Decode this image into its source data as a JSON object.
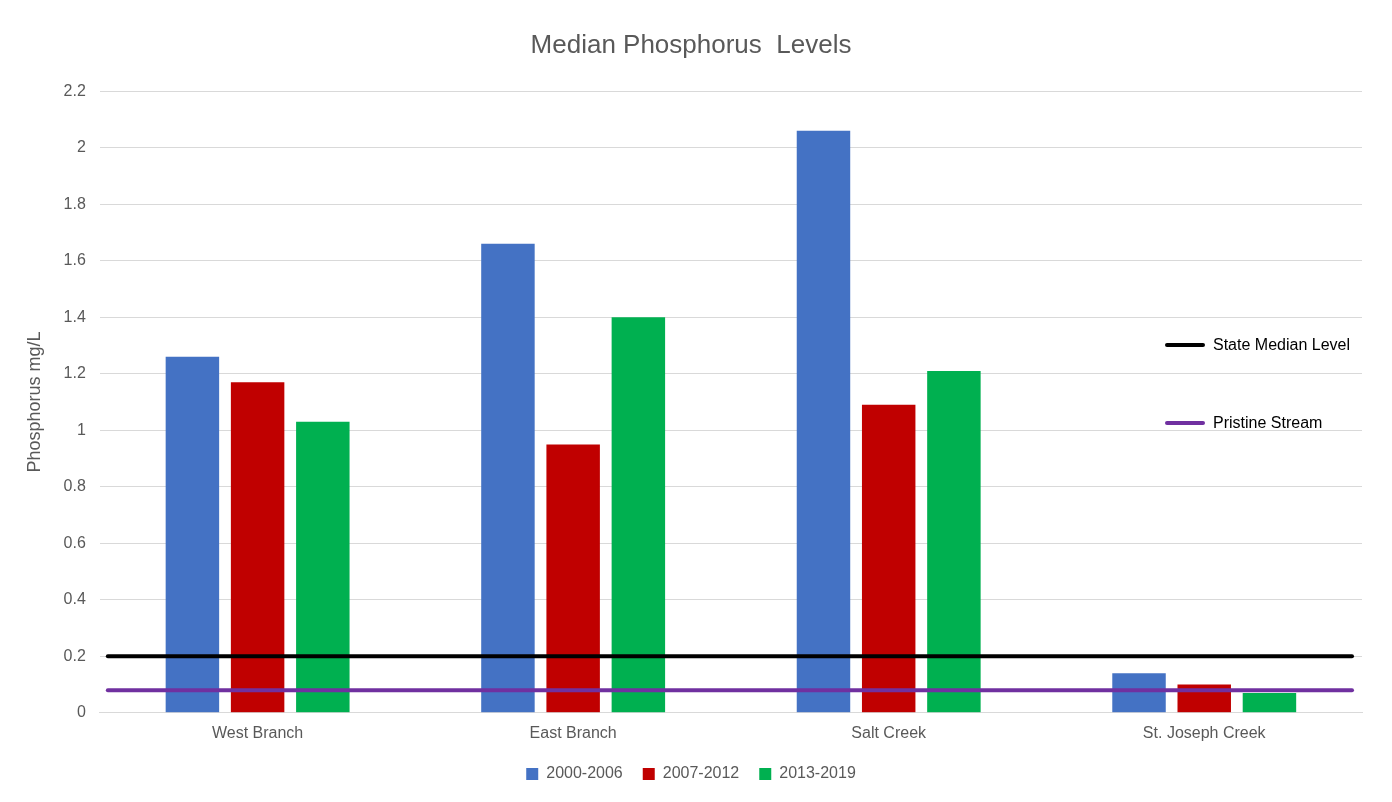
{
  "chart_data": {
    "type": "bar",
    "title": "Median Phosphorus  Levels",
    "ylabel": "Phosphorus mg/L",
    "categories": [
      "West Branch",
      "East Branch",
      "Salt Creek",
      "St. Joseph Creek"
    ],
    "series": [
      {
        "name": "2000-2006",
        "color": "#4472c4",
        "values": [
          1.26,
          1.66,
          2.06,
          0.14
        ]
      },
      {
        "name": "2007-2012",
        "color": "#c00000",
        "values": [
          1.17,
          0.95,
          1.09,
          0.1
        ]
      },
      {
        "name": "2013-2019",
        "color": "#00b050",
        "values": [
          1.03,
          1.4,
          1.21,
          0.07
        ]
      }
    ],
    "ylim": [
      0,
      2.2
    ],
    "yticks": [
      0,
      0.2,
      0.4,
      0.6,
      0.8,
      1,
      1.2,
      1.4,
      1.6,
      1.8,
      2,
      2.2
    ],
    "grid": "y",
    "legend": "bottom",
    "ref_lines": [
      {
        "axis": "y",
        "value": 0.2,
        "label": "State Median Level",
        "color": "#000000"
      },
      {
        "axis": "y",
        "value": 0.08,
        "label": "Pristine Stream",
        "color": "#7030a0"
      }
    ]
  }
}
